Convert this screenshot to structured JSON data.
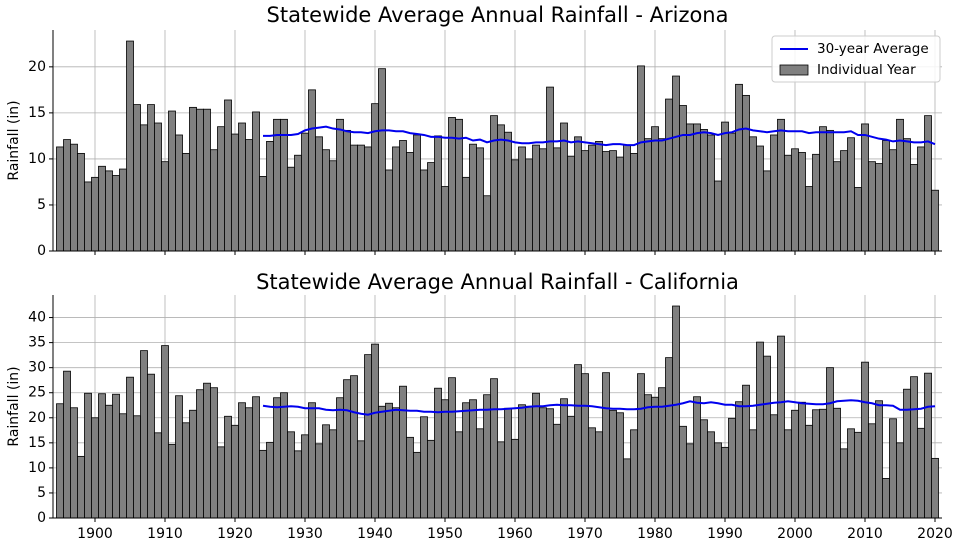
{
  "chart_data": [
    {
      "type": "bar",
      "title": "Statewide Average Annual Rainfall - Arizona",
      "ylabel": "Rainfall (in)",
      "x": [
        1895,
        1896,
        1897,
        1898,
        1899,
        1900,
        1901,
        1902,
        1903,
        1904,
        1905,
        1906,
        1907,
        1908,
        1909,
        1910,
        1911,
        1912,
        1913,
        1914,
        1915,
        1916,
        1917,
        1918,
        1919,
        1920,
        1921,
        1922,
        1923,
        1924,
        1925,
        1926,
        1927,
        1928,
        1929,
        1930,
        1931,
        1932,
        1933,
        1934,
        1935,
        1936,
        1937,
        1938,
        1939,
        1940,
        1941,
        1942,
        1943,
        1944,
        1945,
        1946,
        1947,
        1948,
        1949,
        1950,
        1951,
        1952,
        1953,
        1954,
        1955,
        1956,
        1957,
        1958,
        1959,
        1960,
        1961,
        1962,
        1963,
        1964,
        1965,
        1966,
        1967,
        1968,
        1969,
        1970,
        1971,
        1972,
        1973,
        1974,
        1975,
        1976,
        1977,
        1978,
        1979,
        1980,
        1981,
        1982,
        1983,
        1984,
        1985,
        1986,
        1987,
        1988,
        1989,
        1990,
        1991,
        1992,
        1993,
        1994,
        1995,
        1996,
        1997,
        1998,
        1999,
        2000,
        2001,
        2002,
        2003,
        2004,
        2005,
        2006,
        2007,
        2008,
        2009,
        2010,
        2011,
        2012,
        2013,
        2014,
        2015,
        2016,
        2017,
        2018,
        2019,
        2020
      ],
      "series": [
        {
          "name": "Individual Year",
          "type": "bar",
          "color": "#808080",
          "edgecolor": "#000000",
          "values": [
            11.3,
            12.1,
            11.6,
            10.6,
            7.5,
            8.0,
            9.2,
            8.7,
            8.2,
            8.9,
            22.8,
            15.9,
            13.7,
            15.9,
            13.9,
            9.7,
            15.2,
            12.6,
            10.6,
            15.6,
            15.4,
            15.4,
            11.0,
            13.5,
            16.4,
            12.7,
            13.9,
            12.1,
            15.1,
            8.1,
            11.9,
            14.3,
            14.3,
            9.1,
            10.4,
            12.8,
            17.5,
            12.4,
            11.0,
            9.8,
            14.3,
            13.1,
            11.5,
            11.5,
            11.3,
            16.0,
            19.8,
            8.8,
            11.3,
            12.0,
            10.7,
            12.6,
            8.8,
            9.6,
            12.5,
            7.0,
            14.5,
            14.3,
            8.0,
            11.6,
            11.2,
            6.0,
            14.7,
            13.7,
            12.9,
            9.9,
            11.3,
            10.0,
            11.5,
            11.1,
            17.8,
            11.2,
            13.9,
            10.3,
            12.4,
            10.9,
            11.5,
            11.9,
            10.8,
            10.9,
            10.2,
            11.5,
            10.6,
            20.1,
            12.2,
            13.5,
            12.2,
            16.5,
            19.0,
            15.8,
            13.8,
            13.8,
            13.2,
            12.6,
            7.6,
            14.0,
            12.8,
            18.1,
            16.9,
            12.4,
            11.4,
            8.7,
            12.6,
            14.3,
            10.4,
            11.1,
            10.7,
            7.0,
            10.5,
            13.5,
            13.1,
            9.7,
            10.9,
            12.3,
            6.9,
            13.8,
            9.7,
            9.5,
            12.0,
            11.0,
            14.3,
            12.2,
            9.4,
            11.3,
            14.7,
            6.6
          ]
        },
        {
          "name": "30-year Average",
          "type": "line",
          "color": "#0000ee",
          "values": [
            null,
            null,
            null,
            null,
            null,
            null,
            null,
            null,
            null,
            null,
            null,
            null,
            null,
            null,
            null,
            null,
            null,
            null,
            null,
            null,
            null,
            null,
            null,
            null,
            null,
            null,
            null,
            null,
            null,
            12.5,
            12.5,
            12.6,
            12.6,
            12.6,
            12.7,
            13.1,
            13.3,
            13.4,
            13.5,
            13.3,
            13.2,
            13.0,
            12.9,
            12.9,
            12.8,
            13.0,
            13.1,
            13.1,
            13.0,
            13.0,
            12.8,
            12.7,
            12.6,
            12.4,
            12.4,
            12.3,
            12.3,
            12.2,
            12.3,
            12.0,
            12.1,
            11.8,
            12.0,
            12.1,
            12.0,
            11.8,
            11.7,
            11.7,
            11.8,
            11.8,
            11.9,
            11.9,
            12.0,
            11.8,
            11.9,
            11.8,
            11.7,
            11.6,
            11.5,
            11.6,
            11.6,
            11.5,
            11.5,
            11.8,
            11.9,
            12.0,
            12.0,
            12.2,
            12.4,
            12.6,
            12.6,
            12.8,
            12.9,
            12.8,
            12.6,
            12.8,
            12.9,
            13.2,
            13.3,
            13.1,
            13.0,
            12.9,
            13.0,
            13.1,
            13.0,
            13.0,
            13.0,
            12.8,
            12.9,
            12.9,
            12.9,
            12.9,
            12.9,
            13.0,
            12.6,
            12.6,
            12.4,
            12.2,
            12.1,
            11.9,
            12.0,
            11.9,
            11.8,
            11.8,
            11.9,
            11.6
          ]
        }
      ],
      "xlim": [
        1894,
        2021
      ],
      "ylim": [
        0,
        24
      ],
      "yticks": [
        0,
        5,
        10,
        15,
        20
      ],
      "grid": true,
      "legend": "upper right"
    },
    {
      "type": "bar",
      "title": "Statewide Average Annual Rainfall - California",
      "ylabel": "Rainfall (in)",
      "x": [
        1895,
        1896,
        1897,
        1898,
        1899,
        1900,
        1901,
        1902,
        1903,
        1904,
        1905,
        1906,
        1907,
        1908,
        1909,
        1910,
        1911,
        1912,
        1913,
        1914,
        1915,
        1916,
        1917,
        1918,
        1919,
        1920,
        1921,
        1922,
        1923,
        1924,
        1925,
        1926,
        1927,
        1928,
        1929,
        1930,
        1931,
        1932,
        1933,
        1934,
        1935,
        1936,
        1937,
        1938,
        1939,
        1940,
        1941,
        1942,
        1943,
        1944,
        1945,
        1946,
        1947,
        1948,
        1949,
        1950,
        1951,
        1952,
        1953,
        1954,
        1955,
        1956,
        1957,
        1958,
        1959,
        1960,
        1961,
        1962,
        1963,
        1964,
        1965,
        1966,
        1967,
        1968,
        1969,
        1970,
        1971,
        1972,
        1973,
        1974,
        1975,
        1976,
        1977,
        1978,
        1979,
        1980,
        1981,
        1982,
        1983,
        1984,
        1985,
        1986,
        1987,
        1988,
        1989,
        1990,
        1991,
        1992,
        1993,
        1994,
        1995,
        1996,
        1997,
        1998,
        1999,
        2000,
        2001,
        2002,
        2003,
        2004,
        2005,
        2006,
        2007,
        2008,
        2009,
        2010,
        2011,
        2012,
        2013,
        2014,
        2015,
        2016,
        2017,
        2018,
        2019,
        2020
      ],
      "series": [
        {
          "type": "bar",
          "color": "#808080",
          "edgecolor": "#000000",
          "values": [
            22.8,
            29.3,
            22.0,
            12.3,
            24.9,
            20.0,
            24.8,
            22.5,
            24.7,
            20.8,
            28.1,
            20.4,
            33.4,
            28.7,
            17.0,
            34.4,
            14.7,
            24.4,
            19.0,
            21.5,
            25.6,
            26.9,
            26.0,
            14.2,
            20.3,
            18.5,
            23.0,
            22.0,
            24.2,
            13.5,
            15.1,
            24.0,
            25.0,
            17.2,
            13.4,
            16.6,
            23.0,
            14.8,
            18.6,
            17.6,
            24.0,
            27.6,
            28.4,
            15.4,
            32.6,
            34.7,
            22.3,
            22.9,
            22.0,
            26.3,
            16.1,
            13.1,
            20.2,
            15.5,
            25.9,
            23.6,
            28.0,
            17.2,
            23.0,
            23.6,
            17.8,
            24.6,
            27.8,
            15.2,
            21.9,
            15.7,
            22.6,
            22.3,
            24.9,
            22.0,
            21.8,
            18.7,
            23.8,
            20.3,
            30.6,
            28.8,
            18.0,
            17.2,
            29.0,
            21.5,
            21.0,
            11.8,
            17.6,
            28.8,
            24.6,
            24.1,
            26.0,
            32.0,
            42.3,
            18.3,
            14.8,
            24.2,
            19.6,
            17.2,
            15.0,
            14.1,
            19.9,
            23.2,
            26.5,
            17.6,
            35.1,
            32.3,
            20.6,
            36.3,
            17.6,
            21.5,
            23.1,
            18.5,
            21.6,
            21.7,
            30.0,
            21.9,
            13.8,
            17.8,
            17.1,
            31.1,
            18.8,
            23.4,
            7.9,
            19.8,
            15.0,
            25.7,
            28.2,
            17.9,
            28.9,
            11.9
          ]
        },
        {
          "type": "line",
          "color": "#0000ee",
          "values": [
            null,
            null,
            null,
            null,
            null,
            null,
            null,
            null,
            null,
            null,
            null,
            null,
            null,
            null,
            null,
            null,
            null,
            null,
            null,
            null,
            null,
            null,
            null,
            null,
            null,
            null,
            null,
            null,
            null,
            22.4,
            22.2,
            22.1,
            22.2,
            22.3,
            22.2,
            21.9,
            21.9,
            21.9,
            21.6,
            21.5,
            21.6,
            21.5,
            21.1,
            20.8,
            20.6,
            21.0,
            21.2,
            21.4,
            21.6,
            21.5,
            21.4,
            21.4,
            21.2,
            21.2,
            21.1,
            21.2,
            21.2,
            21.3,
            21.4,
            21.5,
            21.6,
            21.6,
            21.7,
            21.7,
            21.8,
            21.9,
            22.0,
            22.2,
            22.3,
            22.3,
            22.5,
            22.6,
            22.5,
            22.5,
            22.4,
            22.4,
            22.3,
            22.1,
            21.9,
            21.8,
            21.8,
            21.7,
            21.7,
            21.8,
            22.1,
            22.2,
            22.2,
            22.4,
            22.6,
            22.9,
            23.3,
            23.0,
            22.9,
            23.1,
            22.9,
            22.6,
            22.6,
            22.3,
            22.3,
            22.4,
            22.6,
            22.8,
            23.0,
            23.1,
            23.3,
            23.1,
            22.9,
            22.8,
            22.7,
            22.7,
            22.9,
            23.3,
            23.4,
            23.5,
            23.4,
            23.1,
            22.9,
            22.5,
            22.5,
            22.4,
            21.6,
            21.6,
            21.7,
            21.8,
            22.2,
            22.3
          ]
        }
      ],
      "xlim": [
        1894,
        2021
      ],
      "ylim": [
        0,
        44.5
      ],
      "xticks": [
        1900,
        1910,
        1920,
        1930,
        1940,
        1950,
        1960,
        1970,
        1980,
        1990,
        2000,
        2010,
        2020
      ],
      "yticks": [
        0,
        5,
        10,
        15,
        20,
        25,
        30,
        35,
        40
      ],
      "grid": true
    }
  ]
}
